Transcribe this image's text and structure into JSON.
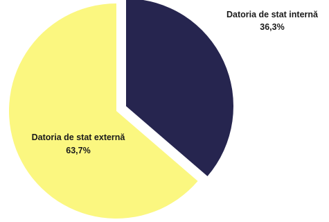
{
  "chart_data": {
    "type": "pie",
    "title": "",
    "categories": [
      "Datoria de stat internă",
      "Datoria de stat externă"
    ],
    "values": [
      36.3,
      63.7
    ],
    "value_labels": [
      "36,3%",
      "63,7%"
    ],
    "colors": [
      "#26254f",
      "#fbf780"
    ],
    "exploded": true,
    "start_angle_deg": 0,
    "direction": "clockwise",
    "legend": "none"
  }
}
